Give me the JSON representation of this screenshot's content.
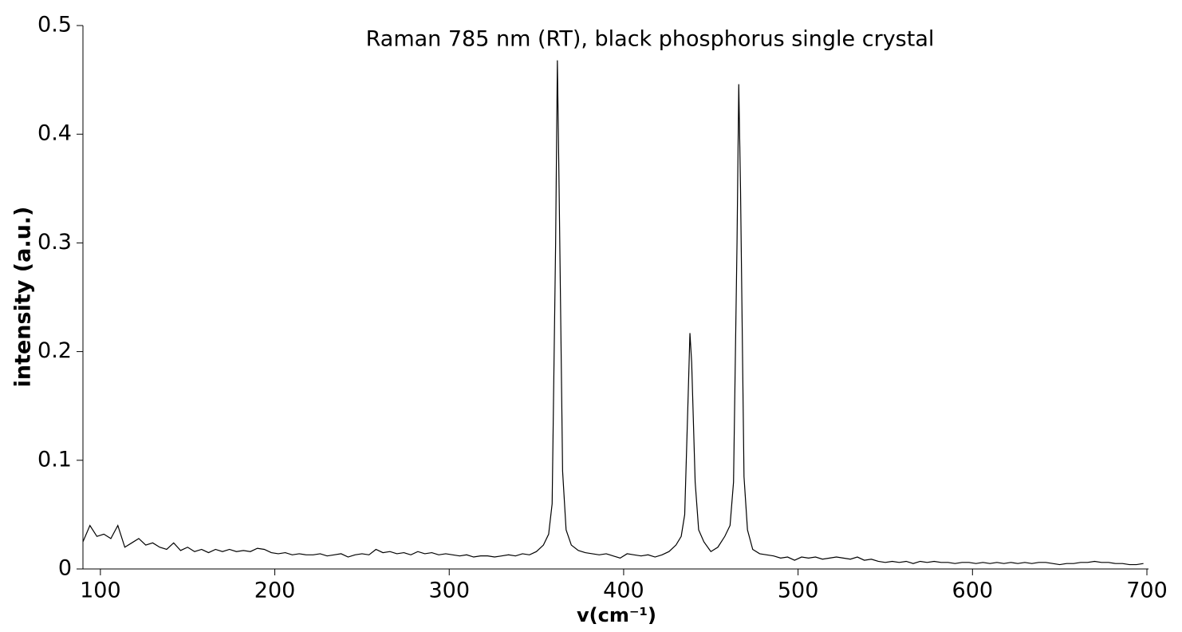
{
  "chart_data": {
    "type": "line",
    "title": "Raman 785 nm (RT), black phosphorus single crystal",
    "xlabel": "v(cm⁻¹)",
    "ylabel": "intensity (a.u.)",
    "color": "#000000",
    "xlim": [
      90,
      700
    ],
    "ylim": [
      0,
      0.5
    ],
    "xticks": [
      100,
      200,
      300,
      400,
      500,
      600,
      700
    ],
    "yticks": [
      0,
      0.1,
      0.2,
      0.3,
      0.4,
      0.5
    ],
    "x": [
      90,
      94,
      98,
      102,
      106,
      110,
      114,
      118,
      122,
      126,
      130,
      134,
      138,
      142,
      146,
      150,
      154,
      158,
      162,
      166,
      170,
      174,
      178,
      182,
      186,
      190,
      194,
      198,
      202,
      206,
      210,
      214,
      218,
      222,
      226,
      230,
      234,
      238,
      242,
      246,
      250,
      254,
      258,
      262,
      266,
      270,
      274,
      278,
      282,
      286,
      290,
      294,
      298,
      302,
      306,
      310,
      314,
      318,
      322,
      326,
      330,
      334,
      338,
      342,
      346,
      350,
      354,
      357,
      359,
      361,
      362,
      363,
      365,
      367,
      370,
      374,
      378,
      382,
      386,
      390,
      394,
      398,
      402,
      406,
      410,
      414,
      418,
      422,
      426,
      430,
      433,
      435,
      437,
      438,
      439,
      441,
      443,
      446,
      450,
      454,
      458,
      461,
      463,
      465,
      466,
      467,
      469,
      471,
      474,
      478,
      482,
      486,
      490,
      494,
      498,
      502,
      506,
      510,
      514,
      518,
      522,
      526,
      530,
      534,
      538,
      542,
      546,
      550,
      554,
      558,
      562,
      566,
      570,
      574,
      578,
      582,
      586,
      590,
      594,
      598,
      602,
      606,
      610,
      614,
      618,
      622,
      626,
      630,
      634,
      638,
      642,
      646,
      650,
      654,
      658,
      662,
      666,
      670,
      674,
      678,
      682,
      686,
      690,
      694,
      698
    ],
    "values": [
      0.025,
      0.04,
      0.03,
      0.032,
      0.028,
      0.04,
      0.02,
      0.024,
      0.028,
      0.022,
      0.024,
      0.02,
      0.018,
      0.024,
      0.017,
      0.02,
      0.016,
      0.018,
      0.015,
      0.018,
      0.016,
      0.018,
      0.016,
      0.017,
      0.016,
      0.019,
      0.018,
      0.015,
      0.014,
      0.015,
      0.013,
      0.014,
      0.013,
      0.013,
      0.014,
      0.012,
      0.013,
      0.014,
      0.011,
      0.013,
      0.014,
      0.013,
      0.018,
      0.015,
      0.016,
      0.014,
      0.015,
      0.013,
      0.016,
      0.014,
      0.015,
      0.013,
      0.014,
      0.013,
      0.012,
      0.013,
      0.011,
      0.012,
      0.012,
      0.011,
      0.012,
      0.013,
      0.012,
      0.014,
      0.013,
      0.016,
      0.022,
      0.032,
      0.06,
      0.3,
      0.468,
      0.35,
      0.09,
      0.036,
      0.022,
      0.017,
      0.015,
      0.014,
      0.013,
      0.014,
      0.012,
      0.01,
      0.014,
      0.013,
      0.012,
      0.013,
      0.011,
      0.013,
      0.016,
      0.022,
      0.03,
      0.05,
      0.16,
      0.217,
      0.19,
      0.08,
      0.036,
      0.025,
      0.016,
      0.02,
      0.03,
      0.04,
      0.08,
      0.3,
      0.446,
      0.35,
      0.085,
      0.036,
      0.018,
      0.014,
      0.013,
      0.012,
      0.01,
      0.011,
      0.008,
      0.011,
      0.01,
      0.011,
      0.009,
      0.01,
      0.011,
      0.01,
      0.009,
      0.011,
      0.008,
      0.009,
      0.007,
      0.006,
      0.007,
      0.006,
      0.007,
      0.005,
      0.007,
      0.006,
      0.007,
      0.006,
      0.006,
      0.005,
      0.006,
      0.006,
      0.005,
      0.006,
      0.005,
      0.006,
      0.005,
      0.006,
      0.005,
      0.006,
      0.005,
      0.006,
      0.006,
      0.005,
      0.004,
      0.005,
      0.005,
      0.006,
      0.006,
      0.007,
      0.006,
      0.006,
      0.005,
      0.005,
      0.004,
      0.004,
      0.005
    ]
  }
}
